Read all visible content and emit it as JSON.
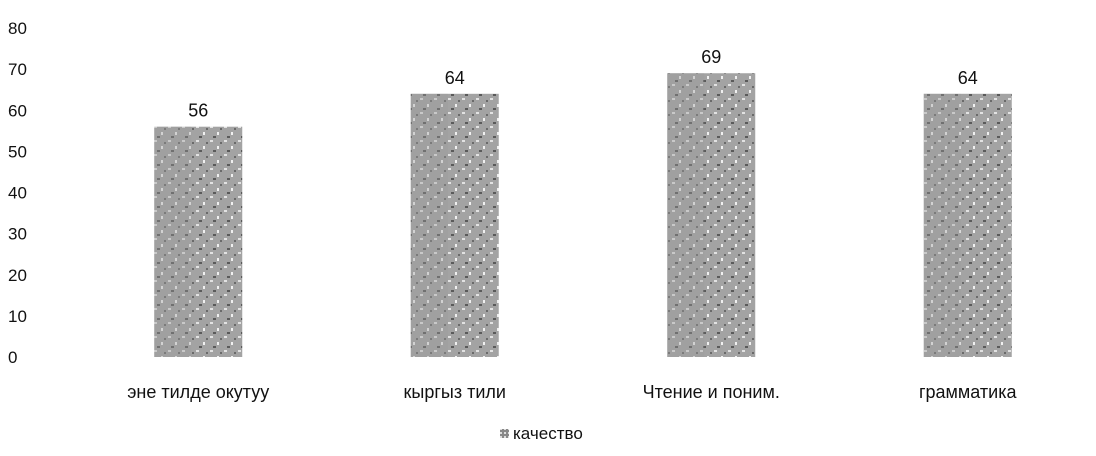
{
  "chart_data": {
    "type": "bar",
    "categories": [
      "эне тилде окутуу",
      "кыргыз тили",
      "Чтение и поним.",
      "грамматика"
    ],
    "series": [
      {
        "name": "качество",
        "values": [
          56,
          64,
          69,
          64
        ]
      }
    ],
    "ylim": [
      0,
      80
    ],
    "yticks": [
      0,
      10,
      20,
      30,
      40,
      50,
      60,
      70,
      80
    ],
    "data_labels": [
      "56",
      "64",
      "69",
      "64"
    ],
    "legend": {
      "position": "bottom",
      "entries": [
        "качество"
      ]
    },
    "grid": false,
    "colors": {
      "bar": "#9a9a9a",
      "bar_light": "#d6d6d6",
      "bar_dark": "#3a3a3a",
      "text": "#111111"
    }
  }
}
